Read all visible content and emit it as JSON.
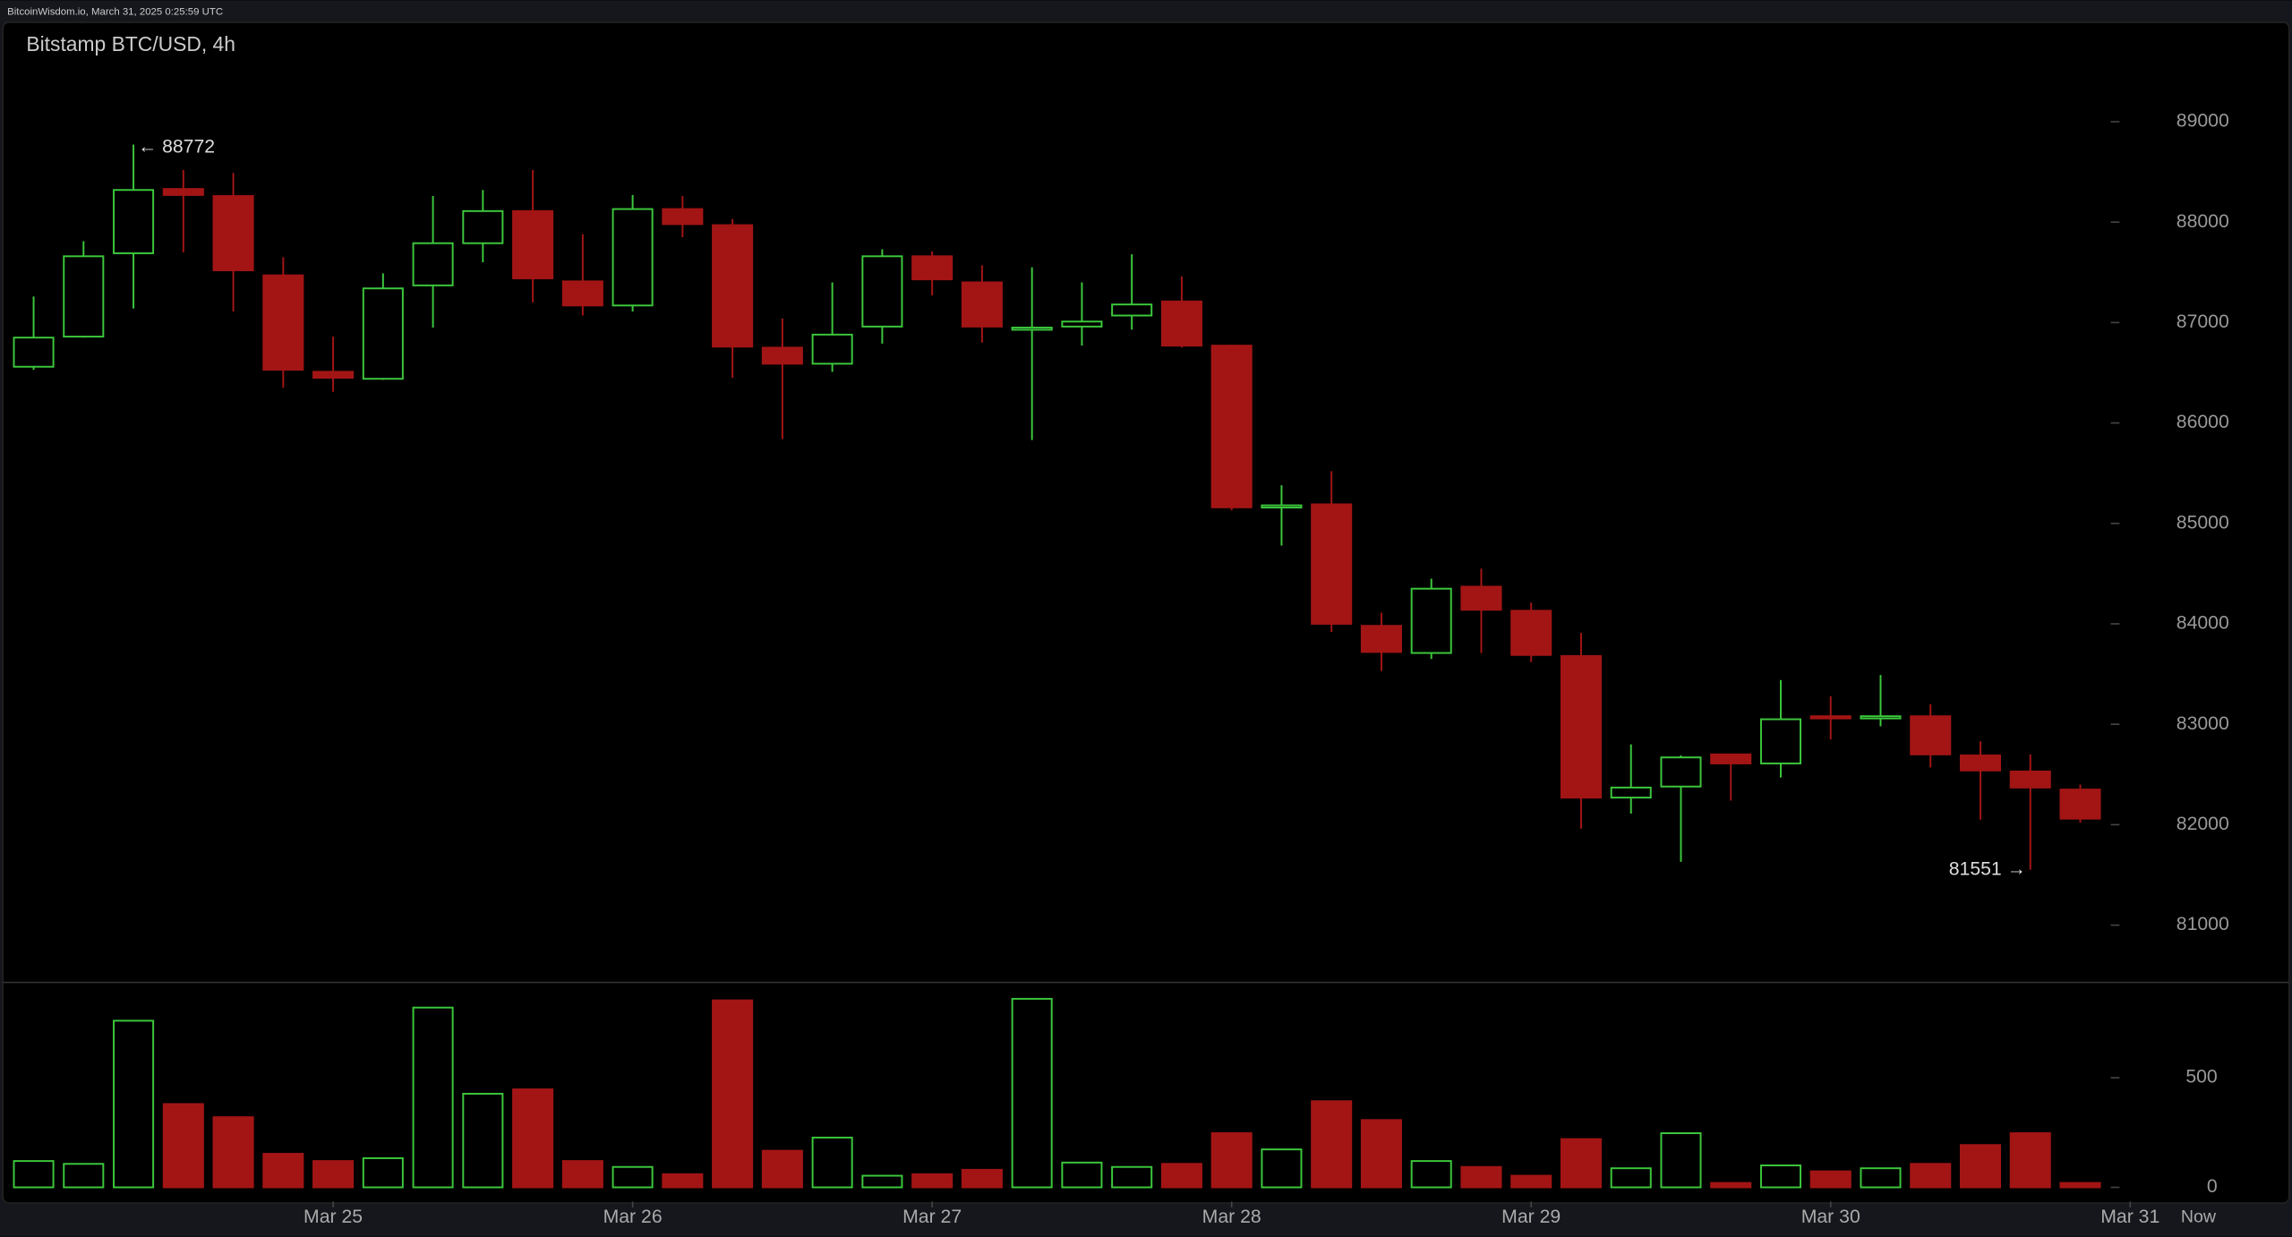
{
  "header": {
    "source": "BitcoinWisdom.io, March 31, 2025 0:25:59 UTC",
    "now_label": "Now"
  },
  "chart_data": {
    "type": "candlestick",
    "title": "Bitstamp BTC/USD, 4h",
    "up_color": "#3cc83c",
    "down_color": "#a31515",
    "open": [
      86560,
      86860,
      87690,
      88330,
      88260,
      87470,
      86510,
      86440,
      87370,
      87790,
      88110,
      87410,
      87170,
      88130,
      87970,
      86750,
      86590,
      86960,
      87660,
      87400,
      86930,
      86960,
      87070,
      87210,
      86770,
      85160,
      85190,
      83980,
      83710,
      84370,
      84130,
      83680,
      82270,
      82380,
      82700,
      82610,
      83080,
      83060,
      83080,
      82690,
      82530,
      82350
    ],
    "high": [
      87260,
      87810,
      88772,
      88520,
      88490,
      87650,
      86860,
      87490,
      88260,
      88320,
      88520,
      87880,
      88270,
      88260,
      88030,
      87040,
      87400,
      87730,
      87710,
      87570,
      87550,
      87400,
      87680,
      87460,
      86780,
      85380,
      85520,
      84110,
      84450,
      84550,
      84210,
      83910,
      82800,
      82690,
      82700,
      83440,
      83280,
      83490,
      83200,
      82830,
      82700,
      82400
    ],
    "low": [
      86530,
      86850,
      87140,
      87700,
      87110,
      86350,
      86310,
      86430,
      86950,
      87600,
      87200,
      87070,
      87110,
      87850,
      86450,
      85840,
      86510,
      86790,
      87270,
      86800,
      85830,
      86770,
      86930,
      86750,
      85130,
      84780,
      83920,
      83530,
      83650,
      83710,
      83620,
      81960,
      82110,
      81630,
      82240,
      82470,
      82850,
      82980,
      82570,
      82050,
      81551,
      82020
    ],
    "close": [
      86850,
      87660,
      88320,
      88270,
      87520,
      86530,
      86450,
      87340,
      87790,
      88110,
      87440,
      87170,
      88130,
      87980,
      86760,
      86590,
      86880,
      87660,
      87430,
      86960,
      86950,
      87010,
      87180,
      86770,
      85160,
      85180,
      84000,
      83720,
      84350,
      84140,
      83690,
      82270,
      82370,
      82670,
      82610,
      83050,
      83060,
      83080,
      82700,
      82540,
      82370,
      82060
    ],
    "volume": [
      120,
      107,
      760,
      380,
      320,
      153,
      120,
      133,
      820,
      427,
      447,
      120,
      93,
      60,
      853,
      167,
      227,
      53,
      60,
      80,
      860,
      113,
      93,
      107,
      247,
      173,
      393,
      307,
      120,
      93,
      53,
      220,
      87,
      247,
      20,
      100,
      73,
      87,
      107,
      193,
      247,
      20
    ],
    "xticks": [
      {
        "value": 6,
        "label": "Mar 25"
      },
      {
        "value": 12,
        "label": "Mar 26"
      },
      {
        "value": 18,
        "label": "Mar 27"
      },
      {
        "value": 24,
        "label": "Mar 28"
      },
      {
        "value": 30,
        "label": "Mar 29"
      },
      {
        "value": 36,
        "label": "Mar 30"
      },
      {
        "value": 42,
        "label": "Mar 31"
      }
    ],
    "ylim": [
      80430,
      89990
    ],
    "yticks": [
      81000,
      82000,
      83000,
      84000,
      85000,
      86000,
      87000,
      88000,
      89000
    ],
    "volume_ylim": [
      -65,
      935
    ],
    "volume_yticks": [
      0,
      500
    ],
    "annotations": [
      {
        "value": 88772,
        "label": "← 88772"
      },
      {
        "value": 81551,
        "label": "81551 →"
      }
    ]
  }
}
